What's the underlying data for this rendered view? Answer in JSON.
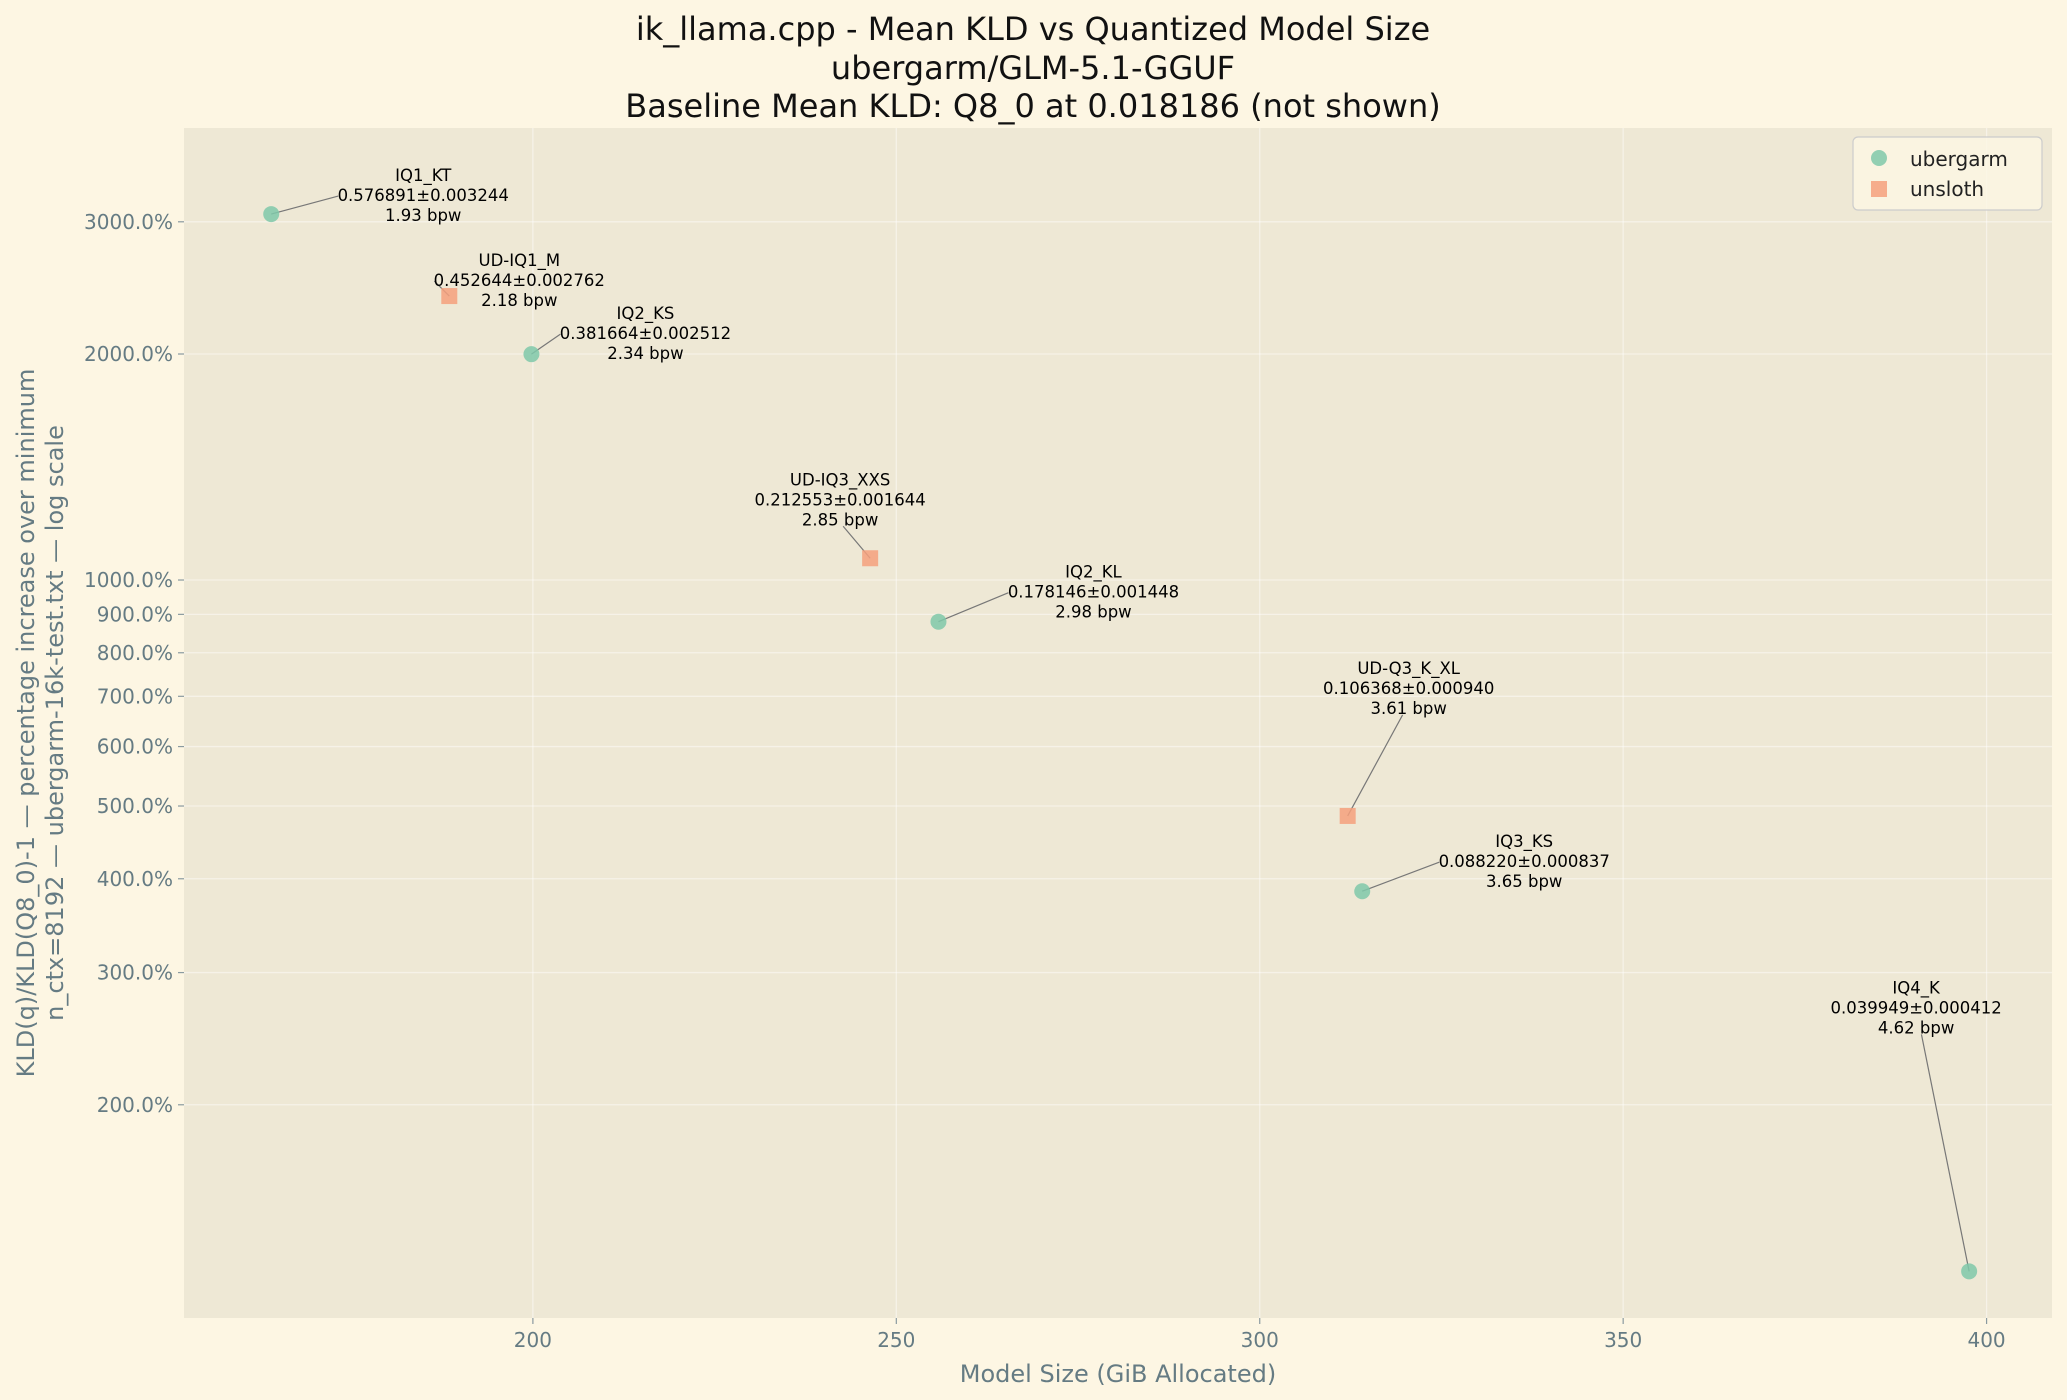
{
  "chart_data": {
    "type": "scatter",
    "title": "ik_llama.cpp - Mean KLD vs Quantized Model Size",
    "subtitle": "ubergarm/GLM-5.1-GGUF",
    "subtitle2": "Baseline Mean KLD: Q8_0 at 0.018186 (not shown)",
    "xlabel": "Model Size (GiB Allocated)",
    "ylabel": "KLD(q)/KLD(Q8_0)-1 — percentage increase over minimum",
    "ylabel2": "n_ctx=8192 — ubergarm-16k-test.txt — log scale",
    "xlim": [
      152,
      409
    ],
    "ylim": [
      104,
      4000
    ],
    "yscale": "log",
    "grid": true,
    "legend_position": "top-right",
    "xticks": [
      200,
      250,
      300,
      350,
      400
    ],
    "xtick_labels": [
      "200",
      "250",
      "300",
      "350",
      "400"
    ],
    "yticks": [
      200,
      300,
      400,
      500,
      600,
      700,
      800,
      900,
      1000,
      2000,
      3000
    ],
    "ytick_labels": [
      "200.0%",
      "300.0%",
      "400.0%",
      "500.0%",
      "600.0%",
      "700.0%",
      "800.0%",
      "900.0%",
      "1000.0%",
      "2000.0%",
      "3000.0%"
    ],
    "colors": {
      "ubergarm": "#7fc8a9",
      "unsloth": "#f5a07d"
    },
    "series": [
      {
        "name": "ubergarm",
        "marker": "circle",
        "points": [
          {
            "x": 164.0,
            "y": 3072,
            "label": "IQ1_KT",
            "kld": "0.576891±0.003244",
            "bpw": "1.93 bpw"
          },
          {
            "x": 199.8,
            "y": 1999,
            "label": "IQ2_KS",
            "kld": "0.381664±0.002512",
            "bpw": "2.34 bpw"
          },
          {
            "x": 255.8,
            "y": 880,
            "label": "IQ2_KL",
            "kld": "0.178146±0.001448",
            "bpw": "2.98 bpw"
          },
          {
            "x": 314.1,
            "y": 385,
            "label": "IQ3_KS",
            "kld": "0.088220±0.000837",
            "bpw": "3.65 bpw"
          },
          {
            "x": 397.6,
            "y": 120,
            "label": "IQ4_K",
            "kld": "0.039949±0.000412",
            "bpw": "4.62 bpw"
          }
        ]
      },
      {
        "name": "unsloth",
        "marker": "square",
        "points": [
          {
            "x": 188.5,
            "y": 2389,
            "label": "UD-IQ1_M",
            "kld": "0.452644±0.002762",
            "bpw": "2.18 bpw"
          },
          {
            "x": 246.4,
            "y": 1069,
            "label": "UD-IQ3_XXS",
            "kld": "0.212553±0.001644",
            "bpw": "2.85 bpw"
          },
          {
            "x": 312.1,
            "y": 485,
            "label": "UD-Q3_K_XL",
            "kld": "0.106368±0.000940",
            "bpw": "3.61 bpw"
          }
        ]
      }
    ]
  }
}
